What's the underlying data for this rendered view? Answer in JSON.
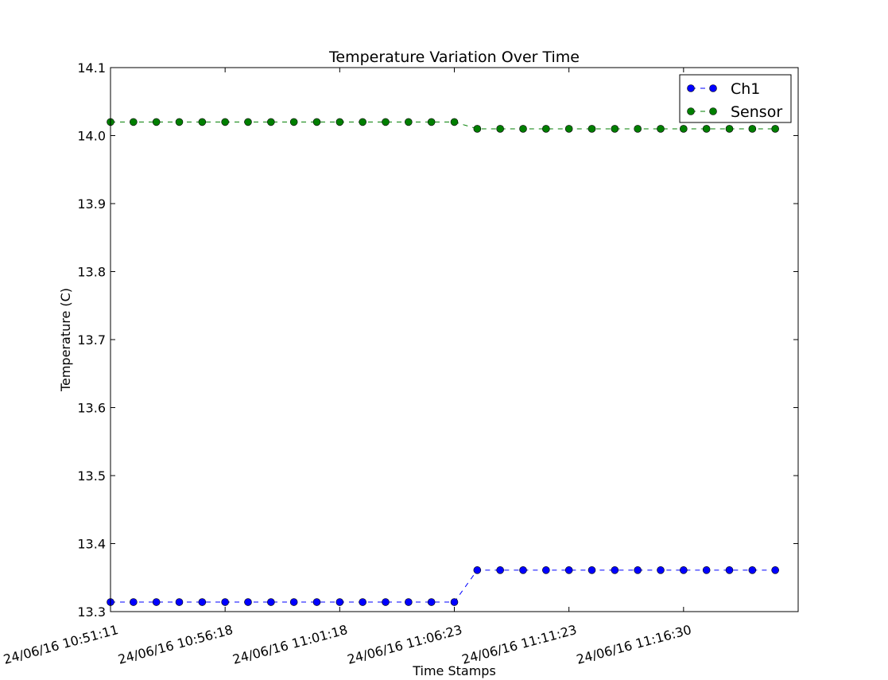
{
  "chart_data": {
    "type": "line",
    "title": "Temperature Variation Over Time",
    "xlabel": "Time Stamps",
    "ylabel": "Temperature (C)",
    "ylim": [
      13.3,
      14.1
    ],
    "yticks": [
      "13.3",
      "13.4",
      "13.5",
      "13.6",
      "13.7",
      "13.8",
      "13.9",
      "14.0",
      "14.1"
    ],
    "xticks": [
      {
        "index": 0,
        "label": "24/06/16 10:51:11"
      },
      {
        "index": 5,
        "label": "24/06/16 10:56:18"
      },
      {
        "index": 10,
        "label": "24/06/16 11:01:18"
      },
      {
        "index": 15,
        "label": "24/06/16 11:06:23"
      },
      {
        "index": 20,
        "label": "24/06/16 11:11:23"
      },
      {
        "index": 25,
        "label": "24/06/16 11:16:30"
      }
    ],
    "x_count": 30,
    "legend_position": "top-right",
    "grid": false,
    "series": [
      {
        "name": "Ch1",
        "color": "#0000ff",
        "line_style": "dashed",
        "marker": "circle",
        "values": [
          13.314,
          13.314,
          13.314,
          13.314,
          13.314,
          13.314,
          13.314,
          13.314,
          13.314,
          13.314,
          13.314,
          13.314,
          13.314,
          13.314,
          13.314,
          13.314,
          13.361,
          13.361,
          13.361,
          13.361,
          13.361,
          13.361,
          13.361,
          13.361,
          13.361,
          13.361,
          13.361,
          13.361,
          13.361,
          13.361
        ]
      },
      {
        "name": "Sensor",
        "color": "#007f00",
        "line_style": "dashed",
        "marker": "circle",
        "values": [
          14.02,
          14.02,
          14.02,
          14.02,
          14.02,
          14.02,
          14.02,
          14.02,
          14.02,
          14.02,
          14.02,
          14.02,
          14.02,
          14.02,
          14.02,
          14.02,
          14.01,
          14.01,
          14.01,
          14.01,
          14.01,
          14.01,
          14.01,
          14.01,
          14.01,
          14.01,
          14.01,
          14.01,
          14.01,
          14.01
        ]
      }
    ]
  }
}
